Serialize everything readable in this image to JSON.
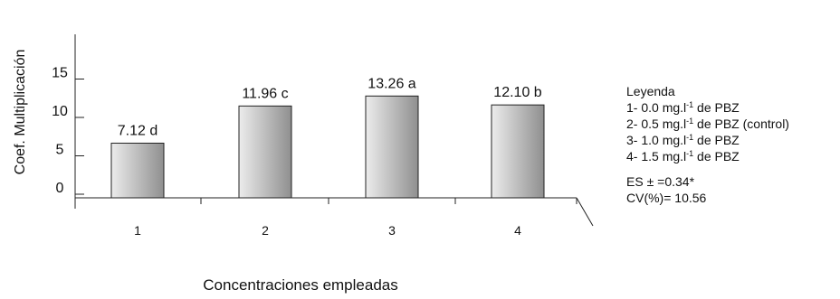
{
  "chart_data": {
    "type": "bar",
    "categories": [
      "1",
      "2",
      "3",
      "4"
    ],
    "values": [
      7.12,
      11.96,
      13.26,
      12.1
    ],
    "data_labels": [
      "7.12 d",
      "11.96 c",
      "13.26 a",
      "12.10 b"
    ],
    "ylabel": "Coef. Multiplicación",
    "xlabel": "Concentraciones empleadas",
    "yticks": [
      "0",
      "5",
      "10",
      "15"
    ],
    "ytick_values": [
      0,
      5,
      10,
      15
    ],
    "ylim": [
      0,
      15
    ],
    "grid": false,
    "bar_colors": {
      "light": "#ececec",
      "dark": "#8f8f8f",
      "edge": "#222222"
    },
    "legend": {
      "placement": "right",
      "title": "Leyenda",
      "items": [
        {
          "prefix": "1- 0.0 mg.l",
          "sup": "-1",
          "suffix": " de PBZ"
        },
        {
          "prefix": "2- 0.5 mg.l",
          "sup": "-1",
          "suffix": " de PBZ (control)"
        },
        {
          "prefix": "3- 1.0 mg.l",
          "sup": "-1",
          "suffix": " de PBZ"
        },
        {
          "prefix": "4- 1.5 mg.l",
          "sup": "-1",
          "suffix": " de PBZ"
        }
      ]
    },
    "annotations": {
      "es": "ES ± =0.34*",
      "cv": "CV(%)= 10.56"
    }
  }
}
